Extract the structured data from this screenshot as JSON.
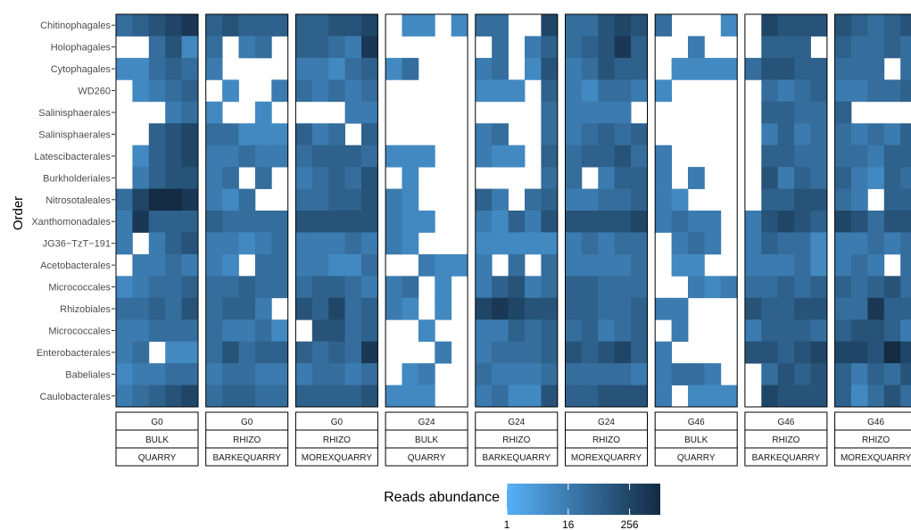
{
  "chart_data": {
    "type": "heatmap",
    "ylabel": "Order",
    "rows": [
      "Chitinophagales",
      "Holophagales",
      "Cytophagales",
      "WD260",
      "Salinisphaerales",
      "Salinisphaerales",
      "Latescibacterales",
      "Burkholderiales",
      "Nitrosotaleales",
      "Xanthomonadales",
      "JG36−TzT−191",
      "Acetobacterales",
      "Micrococcales",
      "Rhizobiales",
      "Micrococcales",
      "Enterobacterales",
      "Babeliales",
      "Caulobacterales"
    ],
    "facets": [
      {
        "time": "G0",
        "compartment": "BULK",
        "site": "QUARRY"
      },
      {
        "time": "G0",
        "compartment": "RHIZO",
        "site": "BARKEQUARRY"
      },
      {
        "time": "G0",
        "compartment": "RHIZO",
        "site": "MOREXQUARRY"
      },
      {
        "time": "G24",
        "compartment": "BULK",
        "site": "QUARRY"
      },
      {
        "time": "G24",
        "compartment": "RHIZO",
        "site": "BARKEQUARRY"
      },
      {
        "time": "G24",
        "compartment": "RHIZO",
        "site": "MOREXQUARRY"
      },
      {
        "time": "G46",
        "compartment": "BULK",
        "site": "QUARRY"
      },
      {
        "time": "G46",
        "compartment": "RHIZO",
        "site": "BARKEQUARRY"
      },
      {
        "time": "G46",
        "compartment": "RHIZO",
        "site": "MOREXQUARRY"
      }
    ],
    "samples_per_facet": 5,
    "scale": "log2",
    "values": [
      [
        [
          32,
          64,
          128,
          256,
          512
        ],
        [
          0,
          0,
          32,
          128,
          8
        ],
        [
          8,
          8,
          32,
          64,
          32
        ],
        [
          0,
          8,
          16,
          32,
          64
        ],
        [
          0,
          0,
          0,
          16,
          32
        ],
        [
          0,
          0,
          64,
          128,
          256
        ],
        [
          0,
          8,
          64,
          128,
          256
        ],
        [
          0,
          16,
          64,
          128,
          128
        ],
        [
          32,
          256,
          1024,
          1024,
          512
        ],
        [
          16,
          512,
          64,
          64,
          64
        ],
        [
          16,
          0,
          16,
          64,
          128
        ],
        [
          0,
          16,
          16,
          32,
          16
        ],
        [
          8,
          16,
          32,
          32,
          64
        ],
        [
          32,
          32,
          64,
          32,
          128
        ],
        [
          16,
          16,
          32,
          32,
          32
        ],
        [
          16,
          32,
          0,
          8,
          8
        ],
        [
          8,
          16,
          16,
          32,
          32
        ],
        [
          16,
          32,
          64,
          128,
          256
        ]
      ],
      [
        [
          64,
          128,
          64,
          64,
          64
        ],
        [
          32,
          0,
          16,
          32,
          0
        ],
        [
          16,
          0,
          0,
          0,
          0
        ],
        [
          0,
          8,
          0,
          0,
          16
        ],
        [
          8,
          0,
          0,
          8,
          0
        ],
        [
          32,
          32,
          8,
          8,
          8
        ],
        [
          16,
          16,
          32,
          16,
          16
        ],
        [
          16,
          32,
          0,
          32,
          0
        ],
        [
          16,
          8,
          32,
          0,
          0
        ],
        [
          64,
          32,
          32,
          32,
          32
        ],
        [
          16,
          16,
          8,
          16,
          32
        ],
        [
          16,
          8,
          0,
          32,
          32
        ],
        [
          32,
          32,
          64,
          32,
          32
        ],
        [
          32,
          64,
          64,
          16,
          0
        ],
        [
          32,
          16,
          16,
          32,
          8
        ],
        [
          32,
          128,
          32,
          64,
          64
        ],
        [
          16,
          32,
          32,
          16,
          16
        ],
        [
          32,
          64,
          64,
          32,
          32
        ]
      ],
      [
        [
          64,
          64,
          128,
          128,
          256
        ],
        [
          64,
          64,
          32,
          16,
          512
        ],
        [
          16,
          16,
          8,
          32,
          64
        ],
        [
          32,
          16,
          32,
          16,
          32
        ],
        [
          0,
          0,
          0,
          16,
          16
        ],
        [
          64,
          16,
          32,
          0,
          64
        ],
        [
          32,
          64,
          64,
          64,
          32
        ],
        [
          16,
          32,
          64,
          32,
          128
        ],
        [
          32,
          32,
          64,
          64,
          128
        ],
        [
          128,
          128,
          128,
          128,
          128
        ],
        [
          16,
          16,
          16,
          32,
          16
        ],
        [
          16,
          16,
          8,
          8,
          32
        ],
        [
          32,
          64,
          64,
          32,
          16
        ],
        [
          128,
          64,
          256,
          32,
          64
        ],
        [
          0,
          128,
          128,
          32,
          64
        ],
        [
          64,
          32,
          64,
          32,
          512
        ],
        [
          16,
          32,
          32,
          16,
          32
        ],
        [
          64,
          64,
          64,
          64,
          128
        ]
      ],
      [
        [
          0,
          8,
          8,
          0,
          8
        ],
        [
          0,
          0,
          0,
          0,
          0
        ],
        [
          8,
          32,
          0,
          0,
          0
        ],
        [
          0,
          0,
          0,
          0,
          0
        ],
        [
          0,
          0,
          0,
          0,
          0
        ],
        [
          0,
          0,
          0,
          0,
          0
        ],
        [
          8,
          8,
          8,
          0,
          0
        ],
        [
          0,
          8,
          0,
          0,
          0
        ],
        [
          16,
          8,
          0,
          0,
          0
        ],
        [
          16,
          8,
          8,
          0,
          0
        ],
        [
          16,
          8,
          0,
          0,
          0
        ],
        [
          0,
          0,
          16,
          8,
          8
        ],
        [
          16,
          32,
          0,
          8,
          0
        ],
        [
          16,
          8,
          0,
          8,
          0
        ],
        [
          0,
          0,
          8,
          0,
          0
        ],
        [
          0,
          0,
          0,
          16,
          0
        ],
        [
          0,
          8,
          16,
          0,
          0
        ],
        [
          8,
          8,
          8,
          0,
          0
        ]
      ],
      [
        [
          32,
          32,
          0,
          0,
          256
        ],
        [
          0,
          32,
          0,
          16,
          64
        ],
        [
          16,
          32,
          0,
          8,
          128
        ],
        [
          8,
          8,
          8,
          0,
          64
        ],
        [
          0,
          0,
          0,
          0,
          32
        ],
        [
          16,
          32,
          0,
          0,
          32
        ],
        [
          16,
          8,
          8,
          0,
          64
        ],
        [
          0,
          0,
          0,
          0,
          32
        ],
        [
          64,
          16,
          0,
          32,
          64
        ],
        [
          16,
          8,
          64,
          16,
          128
        ],
        [
          8,
          8,
          8,
          8,
          8
        ],
        [
          16,
          0,
          32,
          0,
          32
        ],
        [
          16,
          64,
          128,
          16,
          32
        ],
        [
          256,
          512,
          256,
          128,
          128
        ],
        [
          16,
          16,
          64,
          32,
          64
        ],
        [
          16,
          32,
          32,
          32,
          64
        ],
        [
          32,
          16,
          16,
          16,
          32
        ],
        [
          16,
          32,
          8,
          8,
          128
        ]
      ],
      [
        [
          32,
          32,
          128,
          256,
          128
        ],
        [
          32,
          64,
          128,
          512,
          64
        ],
        [
          16,
          32,
          128,
          64,
          64
        ],
        [
          16,
          8,
          32,
          32,
          16
        ],
        [
          16,
          16,
          16,
          16,
          0
        ],
        [
          16,
          32,
          64,
          32,
          64
        ],
        [
          32,
          64,
          64,
          128,
          32
        ],
        [
          32,
          0,
          16,
          64,
          64
        ],
        [
          16,
          16,
          32,
          32,
          64
        ],
        [
          128,
          128,
          128,
          128,
          256
        ],
        [
          16,
          32,
          16,
          32,
          32
        ],
        [
          16,
          16,
          16,
          16,
          32
        ],
        [
          64,
          64,
          32,
          32,
          32
        ],
        [
          64,
          64,
          32,
          32,
          64
        ],
        [
          32,
          64,
          16,
          32,
          64
        ],
        [
          128,
          64,
          128,
          256,
          64
        ],
        [
          32,
          32,
          32,
          32,
          16
        ],
        [
          64,
          64,
          128,
          128,
          128
        ]
      ],
      [
        [
          32,
          0,
          0,
          0,
          8
        ],
        [
          0,
          0,
          16,
          0,
          0
        ],
        [
          0,
          8,
          8,
          8,
          8
        ],
        [
          8,
          0,
          0,
          0,
          0
        ],
        [
          0,
          0,
          0,
          0,
          0
        ],
        [
          0,
          0,
          0,
          0,
          0
        ],
        [
          16,
          0,
          0,
          0,
          0
        ],
        [
          16,
          0,
          16,
          0,
          0
        ],
        [
          16,
          8,
          0,
          0,
          0
        ],
        [
          16,
          32,
          16,
          16,
          0
        ],
        [
          0,
          16,
          32,
          16,
          0
        ],
        [
          0,
          8,
          8,
          0,
          0
        ],
        [
          0,
          0,
          16,
          8,
          16
        ],
        [
          16,
          16,
          0,
          0,
          0
        ],
        [
          0,
          16,
          0,
          0,
          0
        ],
        [
          16,
          0,
          0,
          0,
          0
        ],
        [
          16,
          32,
          32,
          16,
          0
        ],
        [
          16,
          0,
          8,
          8,
          8
        ]
      ],
      [
        [
          0,
          256,
          128,
          128,
          128
        ],
        [
          0,
          64,
          64,
          64,
          0
        ],
        [
          32,
          128,
          128,
          64,
          64
        ],
        [
          0,
          32,
          16,
          32,
          64
        ],
        [
          0,
          64,
          64,
          32,
          32
        ],
        [
          0,
          16,
          64,
          16,
          32
        ],
        [
          0,
          64,
          64,
          32,
          32
        ],
        [
          0,
          128,
          16,
          64,
          32
        ],
        [
          0,
          64,
          64,
          128,
          128
        ],
        [
          16,
          128,
          256,
          128,
          64
        ],
        [
          16,
          64,
          32,
          32,
          8
        ],
        [
          16,
          16,
          16,
          32,
          8
        ],
        [
          32,
          32,
          64,
          32,
          64
        ],
        [
          128,
          64,
          64,
          128,
          128
        ],
        [
          16,
          64,
          64,
          64,
          32
        ],
        [
          128,
          128,
          64,
          128,
          256
        ],
        [
          0,
          32,
          128,
          64,
          128
        ],
        [
          0,
          256,
          128,
          128,
          128
        ]
      ],
      [
        [
          128,
          64,
          32,
          64,
          128
        ],
        [
          64,
          32,
          32,
          64,
          32
        ],
        [
          32,
          32,
          32,
          0,
          32
        ],
        [
          16,
          16,
          32,
          32,
          64
        ],
        [
          64,
          0,
          0,
          0,
          0
        ],
        [
          32,
          16,
          32,
          16,
          64
        ],
        [
          32,
          32,
          16,
          64,
          64
        ],
        [
          64,
          16,
          8,
          64,
          32
        ],
        [
          32,
          16,
          0,
          64,
          64
        ],
        [
          256,
          128,
          32,
          128,
          128
        ],
        [
          16,
          16,
          32,
          16,
          32
        ],
        [
          16,
          32,
          16,
          0,
          32
        ],
        [
          64,
          32,
          64,
          128,
          32
        ],
        [
          32,
          32,
          512,
          64,
          64
        ],
        [
          64,
          128,
          128,
          64,
          16
        ],
        [
          256,
          256,
          128,
          1024,
          256
        ],
        [
          64,
          16,
          64,
          32,
          128
        ],
        [
          64,
          8,
          32,
          128,
          32
        ]
      ]
    ],
    "legend": {
      "title": "Reads abundance",
      "ticks": [
        "1",
        "16",
        "256"
      ],
      "low_color": "#56B1F7",
      "high_color": "#132B43",
      "position": "bottom"
    }
  }
}
